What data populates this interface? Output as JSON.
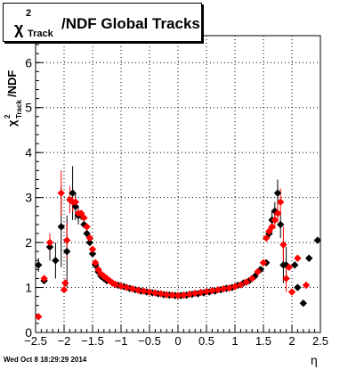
{
  "title": {
    "symbol": "χ",
    "superscript": "2",
    "subscript": "Track",
    "text": "/NDF  Global Tracks"
  },
  "footer": "Wed Oct  8 18:29:29 2014",
  "chart_data": {
    "type": "scatter",
    "title": "χ²Track/NDF  Global Tracks",
    "xlabel": "η",
    "ylabel": "χ²Track/NDF",
    "xlim": [
      -2.5,
      2.5
    ],
    "ylim": [
      0,
      6.6
    ],
    "xticks": [
      -2.5,
      -2,
      -1.5,
      -1,
      -0.5,
      0,
      0.5,
      1,
      1.5,
      2,
      2.5
    ],
    "xtick_labels": [
      "−2.5",
      "−2",
      "−1.5",
      "−1",
      "−0.5",
      "0",
      "0.5",
      "1",
      "1.5",
      "2",
      "2.5"
    ],
    "yticks": [
      0,
      1,
      2,
      3,
      4,
      5,
      6
    ],
    "ytick_labels": [
      "0",
      "1",
      "2",
      "3",
      "4",
      "5",
      "6"
    ],
    "grid": true,
    "series": [
      {
        "color": "#000000",
        "marker": "diamond",
        "points": [
          [
            -2.45,
            1.5,
            0.15
          ],
          [
            -2.35,
            1.15,
            0
          ],
          [
            -2.25,
            1.9,
            0.3
          ],
          [
            -2.15,
            1.6,
            0.4
          ],
          [
            -2.05,
            2.35,
            0.9
          ],
          [
            -1.95,
            1.8,
            0.8
          ],
          [
            -1.85,
            3.1,
            0.6
          ],
          [
            -1.8,
            2.8,
            0.3
          ],
          [
            -1.75,
            2.6,
            0.2
          ],
          [
            -1.7,
            2.6,
            0.1
          ],
          [
            -1.65,
            2.4,
            0
          ],
          [
            -1.6,
            2.2,
            0
          ],
          [
            -1.55,
            2.0,
            0
          ],
          [
            -1.5,
            1.75,
            0
          ],
          [
            -1.45,
            1.5,
            0
          ],
          [
            -1.4,
            1.35,
            0
          ],
          [
            -1.35,
            1.25,
            0
          ],
          [
            -1.3,
            1.2,
            0
          ],
          [
            -1.25,
            1.15,
            0
          ],
          [
            -1.15,
            1.1,
            0
          ],
          [
            -1.05,
            1.05,
            0
          ],
          [
            -0.95,
            1.02,
            0
          ],
          [
            -0.85,
            0.98,
            0
          ],
          [
            -0.75,
            0.95,
            0
          ],
          [
            -0.65,
            0.92,
            0
          ],
          [
            -0.55,
            0.9,
            0
          ],
          [
            -0.45,
            0.88,
            0
          ],
          [
            -0.35,
            0.86,
            0
          ],
          [
            -0.25,
            0.84,
            0
          ],
          [
            -0.15,
            0.83,
            0
          ],
          [
            -0.05,
            0.82,
            0
          ],
          [
            0.05,
            0.82,
            0
          ],
          [
            0.15,
            0.83,
            0
          ],
          [
            0.25,
            0.85,
            0
          ],
          [
            0.35,
            0.86,
            0
          ],
          [
            0.45,
            0.88,
            0
          ],
          [
            0.55,
            0.9,
            0
          ],
          [
            0.65,
            0.92,
            0
          ],
          [
            0.75,
            0.95,
            0
          ],
          [
            0.85,
            0.98,
            0
          ],
          [
            0.95,
            1.0,
            0
          ],
          [
            1.05,
            1.05,
            0
          ],
          [
            1.15,
            1.1,
            0
          ],
          [
            1.25,
            1.15,
            0
          ],
          [
            1.35,
            1.25,
            0
          ],
          [
            1.45,
            1.4,
            0
          ],
          [
            1.55,
            1.55,
            0
          ],
          [
            1.6,
            2.2,
            0.1
          ],
          [
            1.65,
            2.5,
            0.2
          ],
          [
            1.7,
            2.7,
            0.2
          ],
          [
            1.75,
            3.1,
            0.3
          ],
          [
            1.8,
            2.4,
            0.3
          ],
          [
            1.85,
            1.5,
            0.4
          ],
          [
            1.9,
            1.5,
            0.4
          ],
          [
            2.05,
            1.5,
            0
          ],
          [
            2.1,
            1.0,
            0
          ],
          [
            2.2,
            0.65,
            0
          ],
          [
            2.3,
            1.65,
            0
          ],
          [
            2.45,
            2.05,
            0
          ]
        ]
      },
      {
        "color": "#ff0000",
        "marker": "diamond",
        "points": [
          [
            -2.45,
            0.35,
            0
          ],
          [
            -2.35,
            1.2,
            0
          ],
          [
            -2.25,
            2.0,
            0.2
          ],
          [
            -2.05,
            3.1,
            0.5
          ],
          [
            -2.0,
            0.95,
            0
          ],
          [
            -1.98,
            1.1,
            0
          ],
          [
            -1.95,
            2.05,
            0.4
          ],
          [
            -1.9,
            2.95,
            0.3
          ],
          [
            -1.85,
            2.9,
            0.2
          ],
          [
            -1.8,
            2.9,
            0.1
          ],
          [
            -1.75,
            2.65,
            0.1
          ],
          [
            -1.7,
            2.65,
            0
          ],
          [
            -1.65,
            2.55,
            0
          ],
          [
            -1.6,
            2.35,
            0
          ],
          [
            -1.55,
            2.1,
            0
          ],
          [
            -1.5,
            1.85,
            0
          ],
          [
            -1.45,
            1.55,
            0
          ],
          [
            -1.4,
            1.4,
            0
          ],
          [
            -1.35,
            1.3,
            0
          ],
          [
            -1.3,
            1.25,
            0
          ],
          [
            -1.25,
            1.2,
            0
          ],
          [
            -1.2,
            1.15,
            0
          ],
          [
            -1.15,
            1.1,
            0
          ],
          [
            -1.1,
            1.07,
            0
          ],
          [
            -1.0,
            1.03,
            0
          ],
          [
            -0.9,
            1.0,
            0
          ],
          [
            -0.8,
            0.97,
            0
          ],
          [
            -0.7,
            0.94,
            0
          ],
          [
            -0.6,
            0.92,
            0
          ],
          [
            -0.5,
            0.9,
            0
          ],
          [
            -0.4,
            0.88,
            0
          ],
          [
            -0.3,
            0.86,
            0
          ],
          [
            -0.2,
            0.84,
            0
          ],
          [
            -0.1,
            0.83,
            0
          ],
          [
            0.0,
            0.82,
            0
          ],
          [
            0.1,
            0.83,
            0
          ],
          [
            0.2,
            0.85,
            0
          ],
          [
            0.3,
            0.87,
            0
          ],
          [
            0.4,
            0.89,
            0
          ],
          [
            0.5,
            0.91,
            0
          ],
          [
            0.6,
            0.93,
            0
          ],
          [
            0.7,
            0.95,
            0
          ],
          [
            0.8,
            0.97,
            0
          ],
          [
            0.9,
            0.99,
            0
          ],
          [
            1.0,
            1.02,
            0
          ],
          [
            1.1,
            1.06,
            0
          ],
          [
            1.2,
            1.12,
            0
          ],
          [
            1.3,
            1.2,
            0
          ],
          [
            1.4,
            1.35,
            0
          ],
          [
            1.5,
            1.55,
            0
          ],
          [
            1.55,
            2.1,
            0
          ],
          [
            1.6,
            2.25,
            0.1
          ],
          [
            1.65,
            2.35,
            0.1
          ],
          [
            1.7,
            2.5,
            0.2
          ],
          [
            1.75,
            2.65,
            0.2
          ],
          [
            1.8,
            2.9,
            0.3
          ],
          [
            1.85,
            1.95,
            0.4
          ],
          [
            1.9,
            1.2,
            0.3
          ],
          [
            1.95,
            1.45,
            0
          ],
          [
            2.0,
            0.9,
            0
          ],
          [
            2.1,
            1.65,
            0
          ],
          [
            2.25,
            1.05,
            0
          ]
        ]
      }
    ]
  }
}
